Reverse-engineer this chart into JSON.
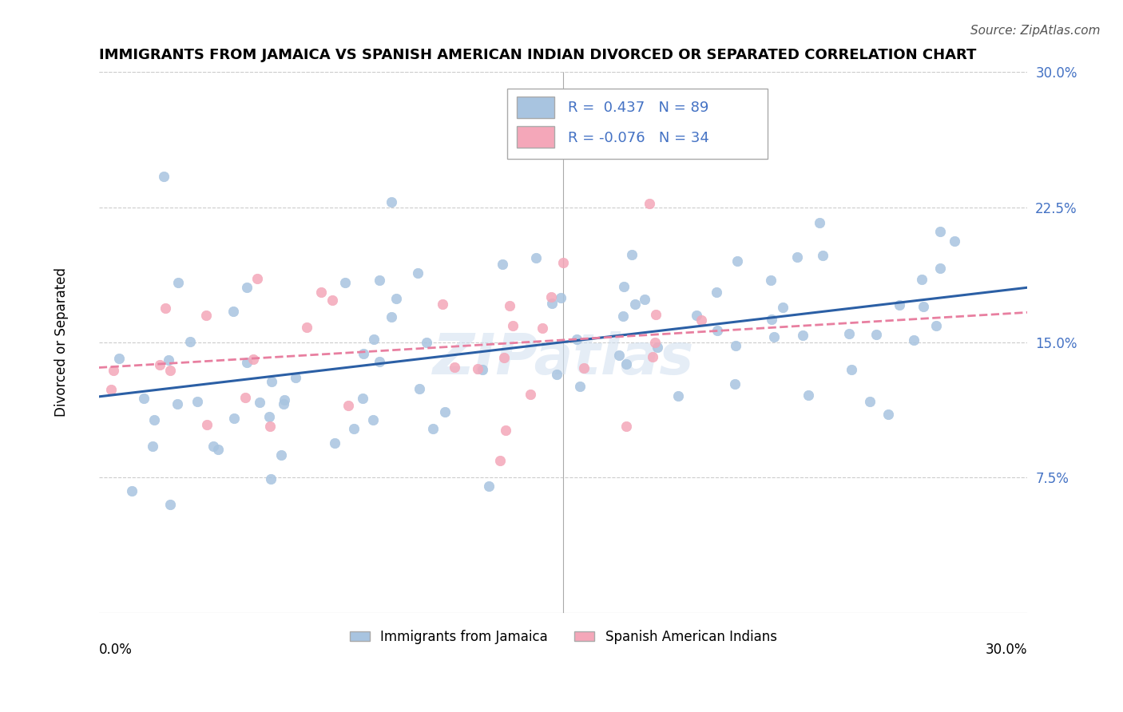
{
  "title": "IMMIGRANTS FROM JAMAICA VS SPANISH AMERICAN INDIAN DIVORCED OR SEPARATED CORRELATION CHART",
  "source": "Source: ZipAtlas.com",
  "ylabel": "Divorced or Separated",
  "ytick_vals": [
    7.5,
    15.0,
    22.5,
    30.0
  ],
  "xmin": 0.0,
  "xmax": 30.0,
  "ymin": 0.0,
  "ymax": 30.0,
  "R_blue": 0.437,
  "N_blue": 89,
  "R_pink": -0.076,
  "N_pink": 34,
  "blue_color": "#a8c4e0",
  "pink_color": "#f4a7b9",
  "blue_line_color": "#2b5fa5",
  "pink_line_color": "#e87fa0",
  "watermark": "ZIPatlas",
  "legend_label_blue": "Immigrants from Jamaica",
  "legend_label_pink": "Spanish American Indians"
}
